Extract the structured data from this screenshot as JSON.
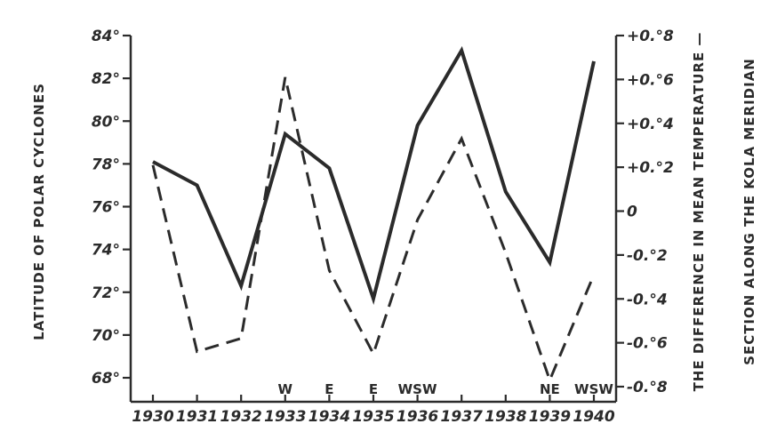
{
  "chart_data": {
    "type": "line",
    "x": [
      1930,
      1931,
      1932,
      1933,
      1934,
      1935,
      1936,
      1937,
      1938,
      1939,
      1940
    ],
    "x_tick_labels": [
      "1930",
      "1931",
      "1932",
      "1933",
      "1934",
      "1935",
      "1936",
      "1937",
      "1938",
      "1939",
      "1940"
    ],
    "y_left": {
      "label": "LATITUDE OF POLAR CYCLONES",
      "range": [
        67,
        84
      ],
      "ticks": [
        84,
        82,
        80,
        78,
        76,
        74,
        72,
        70,
        68
      ],
      "tick_labels": [
        "84°",
        "82°",
        "80°",
        "78°",
        "76°",
        "74°",
        "72°",
        "70°",
        "68°"
      ]
    },
    "y_right": {
      "label_line1": "THE DIFFERENCE IN MEAN TEMPERATURE —",
      "label_line2": "SECTION ALONG THE KOLA MERIDIAN",
      "range": [
        -0.9,
        0.8
      ],
      "ticks": [
        0.8,
        0.6,
        0.4,
        0.2,
        0,
        -0.2,
        -0.4,
        -0.6,
        -0.8
      ],
      "tick_labels": [
        "+0.°8",
        "+0.°6",
        "+0.°4",
        "+0.°2",
        "0",
        "-0.°2",
        "-0.°4",
        "-0.°6",
        "-0.°8"
      ]
    },
    "series": [
      {
        "axis": "left",
        "style": "solid",
        "values": [
          78.1,
          77.0,
          72.3,
          79.4,
          77.8,
          71.7,
          79.8,
          83.3,
          76.7,
          73.4,
          82.8
        ]
      },
      {
        "axis": "right",
        "style": "dashed",
        "values": [
          0.21,
          -0.64,
          -0.58,
          0.61,
          -0.27,
          -0.65,
          -0.04,
          0.33,
          -0.19,
          -0.77,
          -0.29
        ]
      }
    ],
    "annotations": [
      {
        "x": 1933,
        "text": "W"
      },
      {
        "x": 1934,
        "text": "E"
      },
      {
        "x": 1935,
        "text": "E"
      },
      {
        "x": 1936,
        "text": "WSW"
      },
      {
        "x": 1939,
        "text": "NE"
      },
      {
        "x": 1940,
        "text": "WSW"
      }
    ],
    "grid": false,
    "colors": {
      "ink": "#2b2b2b",
      "background": "#ffffff"
    }
  }
}
